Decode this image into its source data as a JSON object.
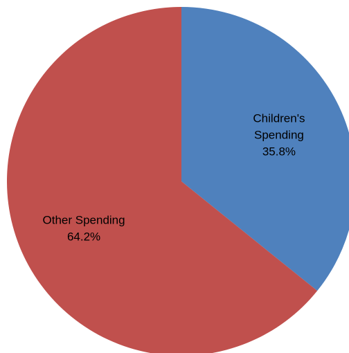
{
  "chart_data": {
    "type": "pie",
    "title": "",
    "slices": [
      {
        "label_lines": [
          "Children's",
          "Spending"
        ],
        "value": 35.8,
        "value_label": "35.8%",
        "color": "#4f81bd"
      },
      {
        "label_lines": [
          "Other Spending"
        ],
        "value": 64.2,
        "value_label": "64.2%",
        "color": "#c0504d"
      }
    ],
    "start_angle": "12 o'clock",
    "direction": "clockwise",
    "legend": "none",
    "data_labels": "inside"
  }
}
